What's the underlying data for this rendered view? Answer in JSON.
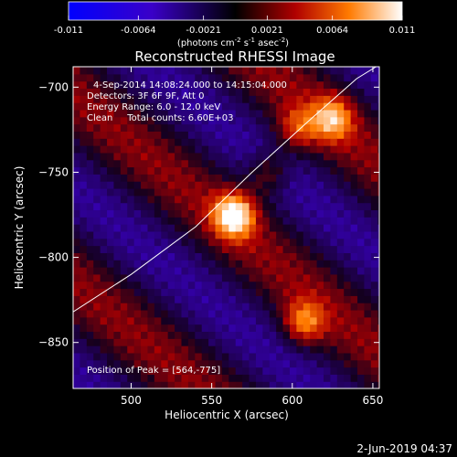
{
  "chart_data": {
    "type": "heatmap",
    "title": "Reconstructed RHESSI Image",
    "xlabel": "Heliocentric X (arcsec)",
    "ylabel": "Heliocentric Y (arcsec)",
    "xlim": [
      464,
      654
    ],
    "ylim": [
      -877,
      -688
    ],
    "x_ticks": [
      500,
      550,
      600,
      650
    ],
    "y_ticks": [
      -700,
      -750,
      -800,
      -850
    ],
    "colorbar": {
      "ticks": [
        "-0.011",
        "-0.0064",
        "-0.0021",
        "0.0021",
        "0.0064",
        "0.011"
      ],
      "range": [
        -0.011,
        0.011
      ],
      "unit_label": "(photons cm",
      "unit_sup1": "-2",
      "unit_mid": " s",
      "unit_sup2": "-1",
      "unit_end": " asec",
      "unit_sup3": "-2",
      "unit_close": ")"
    },
    "annotations": [
      "4-Sep-2014 14:08:24.000 to 14:15:04.000",
      "Detectors: 3F 6F 9F, Att 0",
      "Energy Range: 6.0 - 12.0 keV",
      "Clean     Total counts: 6.60E+03"
    ],
    "peak_label": "Position of Peak = [564,-775]",
    "peak": [
      564,
      -775
    ],
    "sources": [
      {
        "x": 564,
        "y": -775,
        "value": 0.011
      },
      {
        "x": 625,
        "y": -718,
        "value": 0.0075
      },
      {
        "x": 607,
        "y": -838,
        "value": 0.0068
      },
      {
        "x": 603,
        "y": -724,
        "value": 0.005
      },
      {
        "x": 585,
        "y": -750,
        "value": 0.0045
      }
    ],
    "limb_curve": [
      [
        464,
        -832
      ],
      [
        500,
        -810
      ],
      [
        540,
        -782
      ],
      [
        575,
        -750
      ],
      [
        610,
        -720
      ],
      [
        640,
        -695
      ],
      [
        652,
        -688
      ]
    ]
  },
  "footer": {
    "timestamp": "2-Jun-2019 04:37"
  }
}
